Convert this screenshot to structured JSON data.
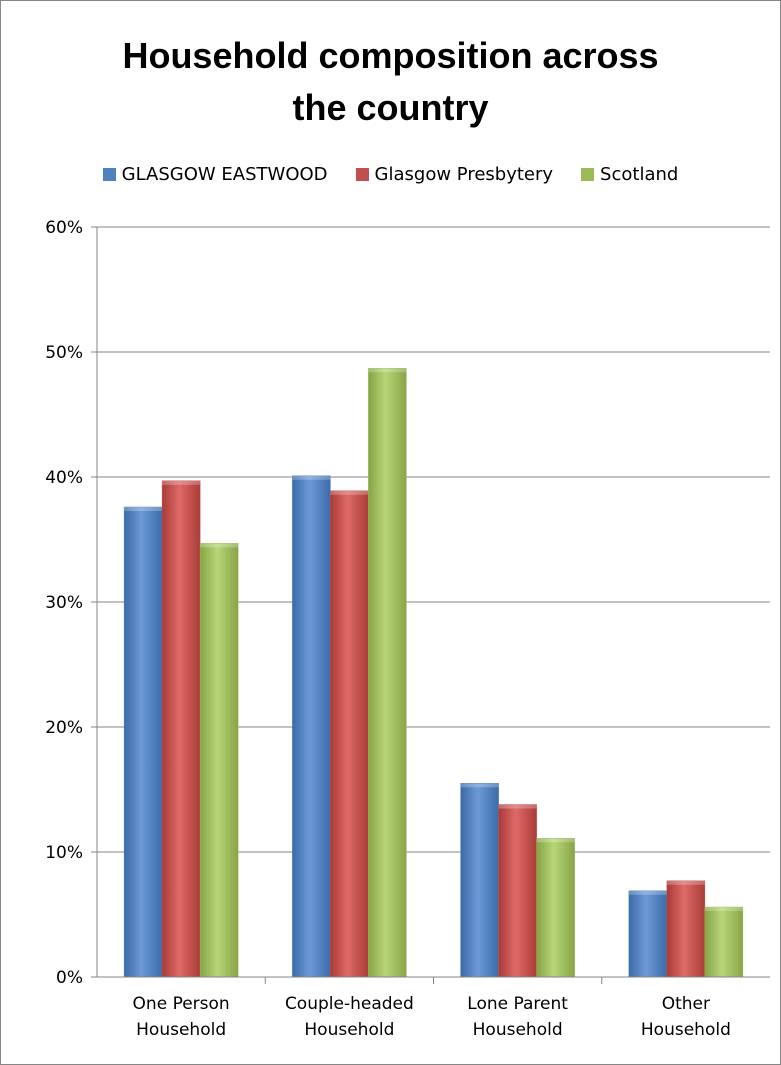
{
  "chart_data": {
    "type": "bar",
    "title": "Household composition across the country",
    "title_lines": [
      "Household composition across",
      "the country"
    ],
    "categories": [
      "One Person Household",
      "Couple-headed Household",
      "Lone Parent Household",
      "Other Household"
    ],
    "category_lines": [
      [
        "One Person",
        "Household"
      ],
      [
        "Couple-headed",
        "Household"
      ],
      [
        "Lone Parent",
        "Household"
      ],
      [
        "Other",
        "Household"
      ]
    ],
    "series": [
      {
        "name": "GLASGOW EASTWOOD",
        "color": "#4f81bd",
        "values": [
          37.6,
          40.1,
          15.5,
          6.9
        ]
      },
      {
        "name": "Glasgow Presbytery",
        "color": "#c0504d",
        "values": [
          39.7,
          38.9,
          13.8,
          7.7
        ]
      },
      {
        "name": "Scotland",
        "color": "#9bbb59",
        "values": [
          34.7,
          48.7,
          11.1,
          5.6
        ]
      }
    ],
    "ylim": [
      0,
      60
    ],
    "yticks": [
      0,
      10,
      20,
      30,
      40,
      50,
      60
    ],
    "ytick_labels": [
      "0%",
      "10%",
      "20%",
      "30%",
      "40%",
      "50%",
      "60%"
    ],
    "grid": true,
    "legend_position": "top"
  }
}
